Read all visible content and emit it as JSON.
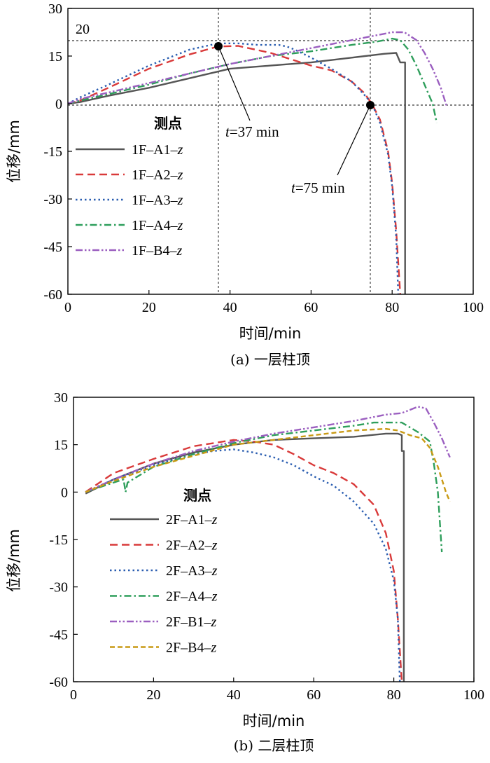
{
  "chart_data": [
    {
      "type": "line",
      "caption": "(a) 一层柱顶",
      "xlabel": "时间/min",
      "ylabel": "位移/mm",
      "xlim": [
        0,
        100
      ],
      "ylim": [
        -60,
        30
      ],
      "xticks": [
        0,
        20,
        40,
        60,
        80,
        100
      ],
      "yticks": [
        30,
        15,
        0,
        -15,
        -30,
        -45,
        -60
      ],
      "legend_title": "测点",
      "reference_lines": {
        "vertical": [
          37,
          75
        ],
        "horizontal": [
          20,
          0
        ],
        "horizontal_label": "20"
      },
      "annotations": [
        {
          "label_t": "t",
          "label_rest": "=37 min",
          "x": 37,
          "y": 18.7
        },
        {
          "label_t": "t",
          "label_rest": "=75 min",
          "x": 75,
          "y": 0
        }
      ],
      "series": [
        {
          "name": "1F–A1–z",
          "label_code": "1F–A1–",
          "label_var": "z",
          "color": "#555555",
          "style": "solid",
          "x": [
            0,
            3,
            10,
            20,
            30,
            40,
            50,
            60,
            70,
            78,
            81,
            82,
            82.5,
            83.2,
            83.2
          ],
          "y": [
            0,
            0.5,
            2.5,
            5,
            8,
            11,
            12,
            13,
            14.5,
            15.7,
            16,
            13,
            13,
            13,
            -60
          ]
        },
        {
          "name": "1F–A2–z",
          "label_code": "1F–A2–",
          "label_var": "z",
          "color": "#d93a3a",
          "style": "dash",
          "x": [
            0,
            3,
            10,
            20,
            30,
            37,
            42,
            50,
            60,
            65,
            70,
            73,
            75,
            77,
            79,
            80,
            81,
            81.5,
            82
          ],
          "y": [
            0,
            1,
            5,
            11,
            15.5,
            18,
            18.2,
            16,
            12,
            10.5,
            7,
            3.5,
            0,
            -5,
            -15,
            -25,
            -40,
            -50,
            -60
          ]
        },
        {
          "name": "1F–A3–z",
          "label_code": "1F–A3–",
          "label_var": "z",
          "color": "#2a5db0",
          "style": "dot",
          "x": [
            0,
            3,
            10,
            20,
            30,
            37,
            42,
            47,
            52,
            54,
            56,
            60,
            65,
            70,
            73,
            75,
            77,
            79,
            80,
            81,
            81.5
          ],
          "y": [
            0,
            2,
            6,
            12,
            17,
            19,
            19,
            18.5,
            18.5,
            18,
            17,
            14.5,
            11,
            7,
            3,
            0,
            -6,
            -16,
            -26,
            -42,
            -60
          ]
        },
        {
          "name": "1F–A4–z",
          "label_code": "1F–A4–",
          "label_var": "z",
          "color": "#2e9e5b",
          "style": "dashdot",
          "x": [
            0,
            3,
            10,
            20,
            30,
            40,
            50,
            60,
            70,
            76,
            80,
            82,
            84,
            86,
            88,
            90,
            91
          ],
          "y": [
            0,
            1,
            3,
            6,
            9.5,
            12.5,
            15,
            16.5,
            18.5,
            19.5,
            20.5,
            20,
            17,
            12,
            6,
            0,
            -6
          ]
        },
        {
          "name": "1F–B4–z",
          "label_code": "1F–B4–",
          "label_var": "z",
          "color": "#9b5fc0",
          "style": "dashdotdot",
          "x": [
            0,
            3,
            10,
            20,
            30,
            40,
            50,
            60,
            70,
            76,
            80,
            83,
            86,
            88,
            90,
            92,
            93.5
          ],
          "y": [
            0,
            1.5,
            3.5,
            6.5,
            9.5,
            12.5,
            15,
            17.5,
            20,
            21.5,
            22.5,
            22.5,
            20,
            16,
            11,
            5,
            -1
          ]
        }
      ]
    },
    {
      "type": "line",
      "caption": "(b) 二层柱顶",
      "xlabel": "时间/min",
      "ylabel": "位移/mm",
      "xlim": [
        0,
        100
      ],
      "ylim": [
        -60,
        30
      ],
      "xticks": [
        0,
        20,
        40,
        60,
        80,
        100
      ],
      "yticks": [
        30,
        15,
        0,
        -15,
        -30,
        -45,
        -60
      ],
      "legend_title": "测点",
      "series": [
        {
          "name": "2F–A1–z",
          "label_code": "2F–A1–",
          "label_var": "z",
          "color": "#555555",
          "style": "solid",
          "x": [
            3,
            10,
            20,
            30,
            40,
            50,
            60,
            70,
            78,
            81,
            82,
            82,
            82.5,
            82.5
          ],
          "y": [
            -0.5,
            4,
            9,
            12.5,
            15,
            16.5,
            17,
            17.5,
            18.5,
            18.5,
            18,
            13,
            13,
            -60
          ]
        },
        {
          "name": "2F–A2–z",
          "label_code": "2F–A2–",
          "label_var": "z",
          "color": "#d93a3a",
          "style": "dash",
          "x": [
            3,
            10,
            20,
            30,
            40,
            45,
            50,
            55,
            60,
            65,
            70,
            75,
            78,
            80,
            81,
            82
          ],
          "y": [
            0,
            6,
            10.5,
            14.5,
            16.5,
            16,
            15,
            12,
            8.5,
            6,
            2.5,
            -4,
            -13,
            -25,
            -40,
            -60
          ]
        },
        {
          "name": "2F–A3–z",
          "label_code": "2F–A3–",
          "label_var": "z",
          "color": "#2a5db0",
          "style": "dot",
          "x": [
            3,
            10,
            20,
            30,
            35,
            40,
            45,
            50,
            55,
            60,
            65,
            70,
            75,
            78,
            80,
            81,
            81.5
          ],
          "y": [
            0,
            4,
            8.5,
            12,
            13,
            13.5,
            12.5,
            11,
            8.5,
            5,
            2,
            -3,
            -10,
            -18,
            -28,
            -40,
            -60
          ]
        },
        {
          "name": "2F–A4–z",
          "label_code": "2F–A4–",
          "label_var": "z",
          "color": "#2e9e5b",
          "style": "dashdot",
          "x": [
            3,
            10,
            12.5,
            13,
            13.5,
            20,
            30,
            40,
            50,
            60,
            70,
            75,
            82,
            86,
            89,
            90,
            91,
            92
          ],
          "y": [
            0,
            3,
            4,
            0,
            3,
            8,
            12,
            15.5,
            18,
            19.5,
            21,
            22,
            22,
            19,
            16,
            9,
            0,
            -19
          ]
        },
        {
          "name": "2F–B1–z",
          "label_code": "2F–B1–",
          "label_var": "z",
          "color": "#9b5fc0",
          "style": "dashdotdot",
          "x": [
            3,
            10,
            20,
            30,
            40,
            50,
            60,
            70,
            78,
            82,
            86,
            88,
            90,
            92,
            94
          ],
          "y": [
            0,
            4,
            9,
            13,
            16,
            18.5,
            20.5,
            22.5,
            24.5,
            25,
            27,
            26.5,
            22,
            17,
            11
          ]
        },
        {
          "name": "2F–B4–z",
          "label_code": "2F–B4–",
          "label_var": "z",
          "color": "#c99a14",
          "style": "shortdash",
          "x": [
            3,
            10,
            20,
            30,
            40,
            50,
            60,
            70,
            78,
            81,
            84,
            87,
            89,
            91,
            93,
            94
          ],
          "y": [
            0,
            3.5,
            8,
            11.5,
            15,
            16.5,
            18,
            19.5,
            20,
            19.5,
            18,
            17,
            14,
            8,
            0,
            -3
          ]
        }
      ]
    }
  ]
}
